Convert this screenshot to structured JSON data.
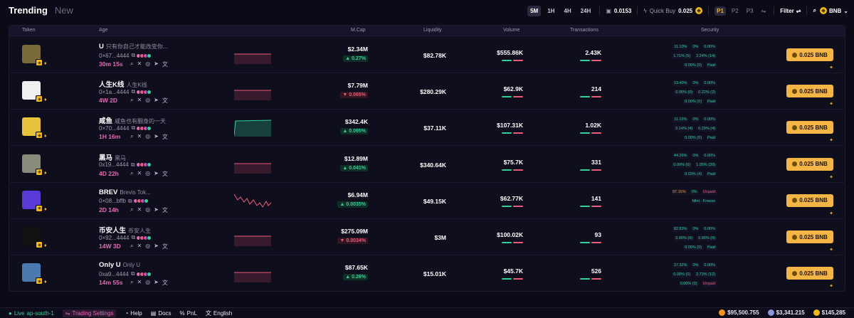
{
  "header": {
    "tab_active": "Trending",
    "tab_inactive": "New",
    "timeframes": [
      "5M",
      "1H",
      "4H",
      "24H"
    ],
    "timeframe_selected": "5M",
    "gas_value": "0.0153",
    "quick_buy_label": "Quick Buy",
    "quick_buy_amount": "0.025",
    "presets": [
      "P1",
      "P2",
      "P3"
    ],
    "preset_selected": "P1",
    "filter_label": "Filter",
    "chain_label": "BNB"
  },
  "table": {
    "columns": [
      "Token",
      "Age",
      "M.Cap",
      "Liquidity",
      "Volume",
      "Transactions",
      "Security"
    ],
    "buy_label": "0.025 BNB",
    "rows": [
      {
        "sym": "U",
        "full": "只有你自己才能改变你...",
        "addr": "0×67...4444",
        "age": "30m 15s",
        "mcap": "$2.34M",
        "mcap_change": "▲ 0.27%",
        "change_dir": "up",
        "liq": "$82.78K",
        "vol": "$555.86K",
        "txn": "2.43K",
        "sec": [
          "11.10%",
          "0%",
          "0.00%",
          "1.71% (5)",
          "2.24% (14)",
          "0.00% (0)",
          "Paid"
        ],
        "spark": "flat-red",
        "img": "#7a6a3a"
      },
      {
        "sym": "人生K线",
        "full": "人生K线",
        "addr": "0×1a...4444",
        "age": "4W 2D",
        "mcap": "$7.79M",
        "mcap_change": "▼ 0.065%",
        "change_dir": "dn",
        "liq": "$280.29K",
        "vol": "$62.9K",
        "txn": "214",
        "sec": [
          "13.40%",
          "0%",
          "0.00%",
          "0.00% (0)",
          "0.22% (2)",
          "0.00% (0)",
          "Paid"
        ],
        "spark": "flat-red",
        "img": "#f0f0f0"
      },
      {
        "sym": "咸鱼",
        "full": "咸鱼也有翻身的一天",
        "addr": "0×70...4444",
        "age": "1H 16m",
        "mcap": "$342.4K",
        "mcap_change": "▲ 0.095%",
        "change_dir": "up",
        "liq": "$37.11K",
        "vol": "$107.31K",
        "txn": "1.02K",
        "sec": [
          "11.15%",
          "0%",
          "0.00%",
          "0.14% (4)",
          "0.29% (4)",
          "0.00% (0)",
          "Paid"
        ],
        "spark": "green",
        "img": "#e8c23a"
      },
      {
        "sym": "黑马",
        "full": "黑马",
        "addr": "0x19...4444",
        "age": "4D 22h",
        "mcap": "$12.89M",
        "mcap_change": "▲ 0.041%",
        "change_dir": "up",
        "liq": "$340.64K",
        "vol": "$75.7K",
        "txn": "331",
        "sec": [
          "44.26%",
          "0%",
          "0.00%",
          "0.00% (0)",
          "1.05% (20)",
          "0.03% (4)",
          "Paid"
        ],
        "spark": "flat-red",
        "img": "#8a8a7a"
      },
      {
        "sym": "BREV",
        "full": "Brevis Tok...",
        "addr": "0×08...bffb",
        "age": "2D 14h",
        "mcap": "$6.94M",
        "mcap_change": "▲ 0.0035%",
        "change_dir": "up",
        "liq": "$49.15K",
        "vol": "$62.77K",
        "txn": "141",
        "sec": [
          "97.15%",
          "0%",
          "Unpaid",
          "Mint · Freeze"
        ],
        "spark": "volatile",
        "img": "#5a3bd8"
      },
      {
        "sym": "币安人生",
        "full": "币安人生",
        "addr": "0×92...4444",
        "age": "14W 3D",
        "mcap": "$275.09M",
        "mcap_change": "▼ 0.0034%",
        "change_dir": "dn",
        "liq": "$3M",
        "vol": "$100.02K",
        "txn": "93",
        "sec": [
          "82.83%",
          "0%",
          "0.00%",
          "0.00% (0)",
          "0.00% (0)",
          "0.00% (0)",
          "Paid"
        ],
        "spark": "flat-red",
        "img": "#111111"
      },
      {
        "sym": "Only U",
        "full": "Only U",
        "addr": "0xa9...4444",
        "age": "14m 55s",
        "mcap": "$87.65K",
        "mcap_change": "▲ 0.26%",
        "change_dir": "up",
        "liq": "$15.01K",
        "vol": "$45.7K",
        "txn": "526",
        "sec": [
          "17.32%",
          "0%",
          "0.00%",
          "0.00% (0)",
          "2.73% (12)",
          "0.00% (0)",
          "Unpaid"
        ],
        "spark": "flat-red",
        "img": "#4a7ab0"
      }
    ]
  },
  "footer": {
    "live_label": "Live",
    "region": "ap-south-1",
    "trading_settings": "Trading Settings",
    "help": "Help",
    "docs": "Docs",
    "pnl": "PnL",
    "language": "English",
    "btc_price": "$95,500.755",
    "eth_price": "$3,341.215",
    "bnb_price": "$145,285"
  },
  "colors": {
    "accent": "#f5b544",
    "up": "#2ed39a",
    "down": "#ef5a7a",
    "age": "#e36bb5"
  }
}
